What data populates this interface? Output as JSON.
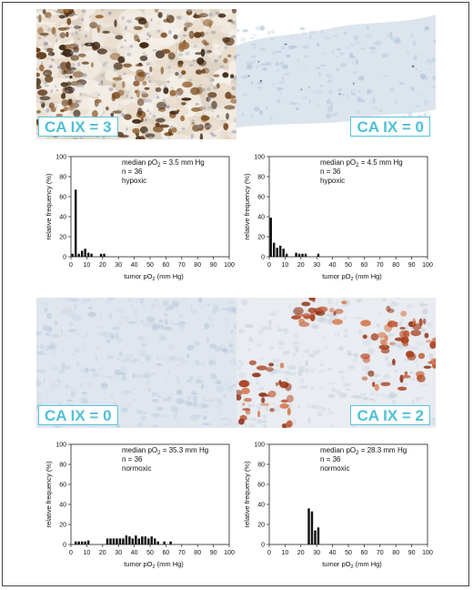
{
  "colors": {
    "stain_brown": "#8a5a2a",
    "stain_red": "#c0542e",
    "tissue_blue": "#d8e2ee",
    "label_cyan": "#4fc0d6",
    "bars": "#111111"
  },
  "panels": [
    {
      "label": "CA IX = 3"
    },
    {
      "label": "CA IX = 0"
    },
    {
      "label": "CA IX = 0"
    },
    {
      "label": "CA IX = 2"
    }
  ],
  "chart_data": [
    {
      "type": "bar",
      "title": "",
      "annotation": {
        "median_prefix": "median pO",
        "median_suffix": " = 3.5 mm Hg",
        "n": "n = 36",
        "status": "hypoxic"
      },
      "xlabel": "tumor pO2 (mm Hg)",
      "ylabel": "relative frequency (%)",
      "xlim": [
        0,
        100
      ],
      "ylim": [
        0,
        100
      ],
      "xticks": [
        0,
        10,
        20,
        30,
        40,
        50,
        60,
        70,
        80,
        90,
        100
      ],
      "yticks": [
        0,
        20,
        40,
        60,
        80,
        100
      ],
      "x": [
        1,
        3,
        5,
        7,
        9,
        11,
        13,
        19,
        21
      ],
      "values": [
        3,
        67,
        3,
        6,
        8,
        4,
        3,
        3,
        3
      ]
    },
    {
      "type": "bar",
      "title": "",
      "annotation": {
        "median_prefix": "median pO",
        "median_suffix": " = 4.5 mm Hg",
        "n": "n = 36",
        "status": "hypoxic"
      },
      "xlabel": "tumor pO2 (mm Hg)",
      "ylabel": "relative frequency (%)",
      "xlim": [
        0,
        100
      ],
      "ylim": [
        0,
        100
      ],
      "xticks": [
        0,
        10,
        20,
        30,
        40,
        50,
        60,
        70,
        80,
        90,
        100
      ],
      "yticks": [
        0,
        20,
        40,
        60,
        80,
        100
      ],
      "x": [
        1,
        3,
        5,
        7,
        9,
        11,
        17,
        19,
        21,
        23,
        31
      ],
      "values": [
        39,
        14,
        9,
        11,
        8,
        3,
        4,
        3,
        3,
        3,
        3
      ]
    },
    {
      "type": "bar",
      "title": "",
      "annotation": {
        "median_prefix": "median pO",
        "median_suffix": " = 35.3 mm Hg",
        "n": "n = 36",
        "status": "normoxic"
      },
      "xlabel": "tumor pO2 (mm Hg)",
      "ylabel": "relative frequency (%)",
      "xlim": [
        0,
        100
      ],
      "ylim": [
        0,
        100
      ],
      "xticks": [
        0,
        10,
        20,
        30,
        40,
        50,
        60,
        70,
        80,
        90,
        100
      ],
      "yticks": [
        0,
        20,
        40,
        60,
        80,
        100
      ],
      "x": [
        3,
        5,
        7,
        9,
        11,
        23,
        25,
        27,
        29,
        31,
        33,
        35,
        37,
        39,
        41,
        43,
        45,
        47,
        49,
        51,
        53,
        55,
        59,
        63
      ],
      "values": [
        3,
        3,
        3,
        3,
        4,
        6,
        6,
        6,
        6,
        6,
        6,
        9,
        8,
        6,
        9,
        6,
        8,
        8,
        6,
        8,
        6,
        3,
        3,
        3
      ]
    },
    {
      "type": "bar",
      "title": "",
      "annotation": {
        "median_prefix": "median pO",
        "median_suffix": " = 28.3 mm Hg",
        "n": "n = 36",
        "status": "normoxic"
      },
      "xlabel": "tumor pO2 (mm Hg)",
      "ylabel": "relative frequency (%)",
      "xlim": [
        0,
        100
      ],
      "ylim": [
        0,
        100
      ],
      "xticks": [
        0,
        10,
        20,
        30,
        40,
        50,
        60,
        70,
        80,
        90,
        100
      ],
      "yticks": [
        0,
        20,
        40,
        60,
        80,
        100
      ],
      "x": [
        25,
        27,
        29,
        31
      ],
      "values": [
        36,
        33,
        14,
        17
      ]
    }
  ]
}
